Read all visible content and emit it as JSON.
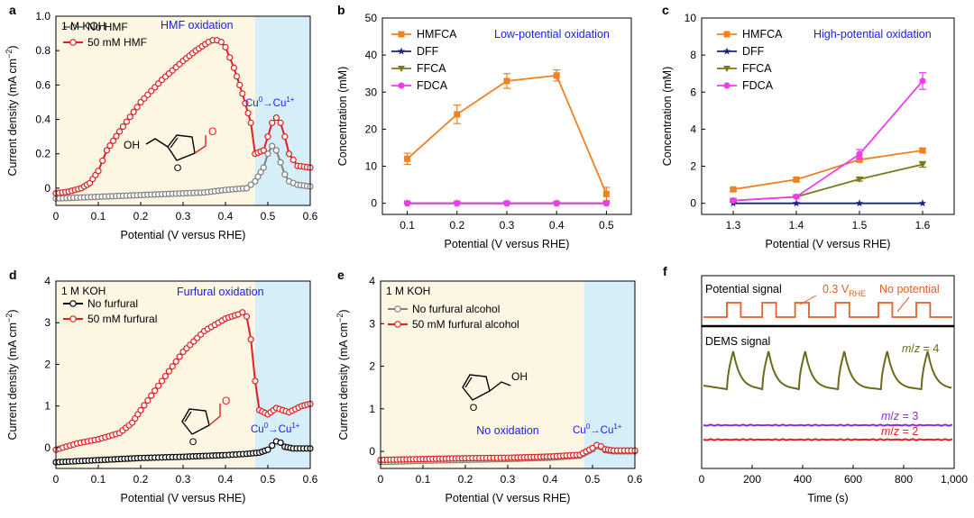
{
  "colors": {
    "red": "#e02020",
    "orange": "#f08020",
    "navy": "#1a237e",
    "olive": "#7a7a1a",
    "magenta": "#f03cf0",
    "grey": "#808080",
    "black": "#000000",
    "purple": "#8a2be2",
    "blue_text": "#1a1aff",
    "shade_cream": "#fdf6e3",
    "shade_blue": "#d6eef8",
    "dems_olive": "#6b6b1a",
    "dems_red": "#e02020",
    "potential_orange": "#e0602a"
  },
  "chart_data": [
    {
      "panel": "a",
      "type": "line",
      "title": "HMF oxidation",
      "xlabel": "Potential (V versus RHE)",
      "ylabel": "Current density (mA cm⁻²)",
      "ylabel_parts": [
        "Current density (mA cm",
        "−2",
        ")"
      ],
      "xlim": [
        0,
        0.6
      ],
      "ylim": [
        -0.1,
        1.0
      ],
      "xticks": [
        0,
        0.1,
        0.2,
        0.3,
        0.4,
        0.5,
        0.6
      ],
      "xtick_labels": [
        "0",
        "0.1",
        "0.2",
        "0.3",
        "0.4",
        "0.5",
        "0.6"
      ],
      "yticks": [
        0,
        0.2,
        0.4,
        0.6,
        0.8,
        1.0
      ],
      "ytick_labels": [
        "0",
        "0.2",
        "0.4",
        "0.6",
        "0.8",
        "1.0"
      ],
      "electrolyte": "1 M KOH",
      "shade_split": 0.47,
      "cu_label_parts": [
        "Cu",
        "0",
        "→Cu",
        "1+"
      ],
      "series": [
        {
          "name": "No HMF",
          "color_key": "grey",
          "x": [
            0,
            0.05,
            0.1,
            0.15,
            0.2,
            0.25,
            0.3,
            0.35,
            0.4,
            0.45,
            0.47,
            0.49,
            0.5,
            0.51,
            0.52,
            0.53,
            0.54,
            0.55,
            0.57,
            0.6
          ],
          "y": [
            -0.06,
            -0.055,
            -0.05,
            -0.045,
            -0.04,
            -0.035,
            -0.03,
            -0.025,
            -0.01,
            0.0,
            0.04,
            0.12,
            0.2,
            0.245,
            0.22,
            0.15,
            0.08,
            0.04,
            0.02,
            0.01
          ]
        },
        {
          "name": "50 mM HMF",
          "color_key": "red",
          "x": [
            0,
            0.03,
            0.06,
            0.08,
            0.1,
            0.12,
            0.15,
            0.2,
            0.25,
            0.3,
            0.33,
            0.36,
            0.37,
            0.38,
            0.39,
            0.4,
            0.42,
            0.44,
            0.46,
            0.47,
            0.49,
            0.5,
            0.51,
            0.52,
            0.53,
            0.54,
            0.55,
            0.57,
            0.6
          ],
          "y": [
            -0.03,
            -0.02,
            0.0,
            0.03,
            0.1,
            0.22,
            0.33,
            0.5,
            0.63,
            0.74,
            0.8,
            0.85,
            0.86,
            0.86,
            0.85,
            0.82,
            0.7,
            0.55,
            0.38,
            0.2,
            0.22,
            0.3,
            0.38,
            0.41,
            0.38,
            0.3,
            0.2,
            0.13,
            0.12
          ]
        }
      ],
      "molecule": {
        "oh_label": "OH",
        "o_label": "O"
      }
    },
    {
      "panel": "b",
      "type": "line",
      "title": "Low-potential oxidation",
      "xlabel": "Potential (V versus RHE)",
      "ylabel": "Concentration (mM)",
      "xlim": [
        0.05,
        0.55
      ],
      "ylim": [
        -3,
        50
      ],
      "xticks": [
        0.1,
        0.2,
        0.3,
        0.4,
        0.5
      ],
      "xtick_labels": [
        "0.1",
        "0.2",
        "0.3",
        "0.4",
        "0.5"
      ],
      "yticks": [
        0,
        10,
        20,
        30,
        40,
        50
      ],
      "ytick_labels": [
        "0",
        "10",
        "20",
        "30",
        "40",
        "50"
      ],
      "x": [
        0.1,
        0.2,
        0.3,
        0.4,
        0.5
      ],
      "series": [
        {
          "name": "HMFCA",
          "color_key": "orange",
          "marker": "square",
          "values": [
            12,
            24,
            33,
            34.5,
            2.5
          ],
          "errors": [
            1.5,
            2.5,
            2.0,
            1.5,
            1.8
          ]
        },
        {
          "name": "DFF",
          "color_key": "navy",
          "marker": "star",
          "values": [
            0,
            0,
            0,
            0,
            0
          ],
          "errors": [
            0,
            0,
            0,
            0,
            0
          ]
        },
        {
          "name": "FFCA",
          "color_key": "olive",
          "marker": "triangle-down",
          "values": [
            0,
            0,
            0,
            0,
            0
          ],
          "errors": [
            0,
            0,
            0,
            0,
            0
          ]
        },
        {
          "name": "FDCA",
          "color_key": "magenta",
          "marker": "circle",
          "values": [
            0,
            0,
            0,
            0,
            0
          ],
          "errors": [
            0,
            0,
            0,
            0,
            0
          ]
        }
      ]
    },
    {
      "panel": "c",
      "type": "line",
      "title": "High-potential oxidation",
      "xlabel": "Potential (V versus RHE)",
      "ylabel": "Concentration (mM)",
      "xlim": [
        1.25,
        1.65
      ],
      "ylim": [
        -0.6,
        10
      ],
      "xticks": [
        1.3,
        1.4,
        1.5,
        1.6
      ],
      "xtick_labels": [
        "1.3",
        "1.4",
        "1.5",
        "1.6"
      ],
      "yticks": [
        0,
        2,
        4,
        6,
        8,
        10
      ],
      "ytick_labels": [
        "0",
        "2",
        "4",
        "6",
        "8",
        "10"
      ],
      "x": [
        1.3,
        1.4,
        1.5,
        1.6
      ],
      "series": [
        {
          "name": "HMFCA",
          "color_key": "orange",
          "marker": "square",
          "values": [
            0.75,
            1.28,
            2.35,
            2.85
          ],
          "errors": [
            0.08,
            0.1,
            0.12,
            0.12
          ]
        },
        {
          "name": "DFF",
          "color_key": "navy",
          "marker": "star",
          "values": [
            0,
            0,
            0,
            0
          ],
          "errors": [
            0,
            0,
            0,
            0
          ]
        },
        {
          "name": "FFCA",
          "color_key": "olive",
          "marker": "triangle-down",
          "values": [
            0.15,
            0.35,
            1.3,
            2.1
          ],
          "errors": [
            0.05,
            0.05,
            0.1,
            0.15
          ]
        },
        {
          "name": "FDCA",
          "color_key": "magenta",
          "marker": "circle",
          "values": [
            0.15,
            0.35,
            2.65,
            6.6
          ],
          "errors": [
            0.05,
            0.05,
            0.25,
            0.45
          ]
        }
      ]
    },
    {
      "panel": "d",
      "type": "line",
      "title": "Furfural oxidation",
      "xlabel": "Potential (V versus RHE)",
      "ylabel": "Current density (mA cm⁻²)",
      "ylabel_parts": [
        "Current density (mA cm",
        "−2",
        ")"
      ],
      "xlim": [
        0,
        0.6
      ],
      "ylim": [
        -0.5,
        4
      ],
      "xticks": [
        0,
        0.1,
        0.2,
        0.3,
        0.4,
        0.5,
        0.6
      ],
      "xtick_labels": [
        "0",
        "0.1",
        "0.2",
        "0.3",
        "0.4",
        "0.5",
        "0.6"
      ],
      "yticks": [
        0,
        1,
        2,
        3,
        4
      ],
      "ytick_labels": [
        "0",
        "1",
        "2",
        "3",
        "4"
      ],
      "electrolyte": "1 M KOH",
      "shade_split": 0.47,
      "cu_label_parts": [
        "Cu",
        "0",
        "→Cu",
        "1+"
      ],
      "series": [
        {
          "name": "No furfural",
          "color_key": "black",
          "x": [
            0,
            0.1,
            0.2,
            0.3,
            0.4,
            0.45,
            0.48,
            0.5,
            0.51,
            0.52,
            0.53,
            0.54,
            0.56,
            0.6
          ],
          "y": [
            -0.35,
            -0.3,
            -0.25,
            -0.22,
            -0.18,
            -0.15,
            -0.12,
            -0.05,
            0.05,
            0.15,
            0.12,
            0.02,
            -0.02,
            -0.02
          ]
        },
        {
          "name": "50 mM furfural",
          "color_key": "red",
          "x": [
            0,
            0.05,
            0.1,
            0.15,
            0.18,
            0.2,
            0.25,
            0.3,
            0.35,
            0.4,
            0.43,
            0.44,
            0.45,
            0.46,
            0.47,
            0.48,
            0.5,
            0.52,
            0.55,
            0.58,
            0.6
          ],
          "y": [
            -0.05,
            0.1,
            0.2,
            0.35,
            0.6,
            0.9,
            1.6,
            2.3,
            2.8,
            3.1,
            3.2,
            3.25,
            3.15,
            2.6,
            1.6,
            0.9,
            0.8,
            0.95,
            0.85,
            1.0,
            1.05
          ]
        }
      ],
      "molecule": {
        "o_label": "O",
        "o2_label": "O"
      }
    },
    {
      "panel": "e",
      "type": "line",
      "title": "No oxidation",
      "xlabel": "Potential (V versus RHE)",
      "ylabel": "Current density (mA cm⁻²)",
      "ylabel_parts": [
        "Current density (mA cm",
        "−2",
        ")"
      ],
      "xlim": [
        0,
        0.6
      ],
      "ylim": [
        -0.4,
        4
      ],
      "xticks": [
        0,
        0.1,
        0.2,
        0.3,
        0.4,
        0.5,
        0.6
      ],
      "xtick_labels": [
        "0",
        "0.1",
        "0.2",
        "0.3",
        "0.4",
        "0.5",
        "0.6"
      ],
      "yticks": [
        0,
        1,
        2,
        3,
        4
      ],
      "ytick_labels": [
        "0",
        "1",
        "2",
        "3",
        "4"
      ],
      "electrolyte": "1 M KOH",
      "shade_split": 0.48,
      "cu_label_parts": [
        "Cu",
        "0",
        "→Cu",
        "1+"
      ],
      "series": [
        {
          "name": "No furfural alcohol",
          "color_key": "grey",
          "x": [
            0,
            0.1,
            0.2,
            0.3,
            0.4,
            0.47,
            0.5,
            0.51,
            0.52,
            0.53,
            0.55,
            0.6
          ],
          "y": [
            -0.25,
            -0.22,
            -0.2,
            -0.18,
            -0.15,
            -0.1,
            0.05,
            0.12,
            0.1,
            0.03,
            0.0,
            0.0
          ]
        },
        {
          "name": "50 mM furfural alcohol",
          "color_key": "red",
          "x": [
            0,
            0.1,
            0.2,
            0.3,
            0.4,
            0.47,
            0.5,
            0.51,
            0.52,
            0.53,
            0.55,
            0.6
          ],
          "y": [
            -0.2,
            -0.18,
            -0.16,
            -0.15,
            -0.12,
            -0.08,
            0.08,
            0.15,
            0.12,
            0.05,
            0.02,
            0.02
          ]
        }
      ],
      "molecule": {
        "oh_label": "OH",
        "o_label": "O"
      }
    },
    {
      "panel": "f",
      "type": "line",
      "xlabel": "Time (s)",
      "xlim": [
        0,
        1000
      ],
      "xticks": [
        0,
        200,
        400,
        600,
        800,
        1000
      ],
      "xtick_labels": [
        "0",
        "200",
        "400",
        "600",
        "800",
        "1,000"
      ],
      "potential_label": "Potential signal",
      "potential_value_parts": [
        "0.3 V",
        "RHE"
      ],
      "no_potential_label": "No potential",
      "dems_label": "DEMS signal",
      "pulse_times": [
        100,
        240,
        370,
        530,
        700,
        850
      ],
      "pulse_width": 55,
      "series": [
        {
          "name": "m/z = 4",
          "name_parts": [
            "m",
            "/",
            "z",
            " = 4"
          ],
          "color_key": "dems_olive",
          "peaks": [
            125,
            265,
            410,
            565,
            735,
            895
          ],
          "peak_level": 1.0,
          "base_level": 0.0
        },
        {
          "name": "m/z = 3",
          "name_parts": [
            "m",
            "/",
            "z",
            " = 3"
          ],
          "color_key": "purple",
          "level": 0.0
        },
        {
          "name": "m/z = 2",
          "name_parts": [
            "m",
            "/",
            "z",
            " = 2"
          ],
          "color_key": "dems_red",
          "level": 0.0
        }
      ]
    }
  ],
  "panel_labels": [
    "a",
    "b",
    "c",
    "d",
    "e",
    "f"
  ]
}
